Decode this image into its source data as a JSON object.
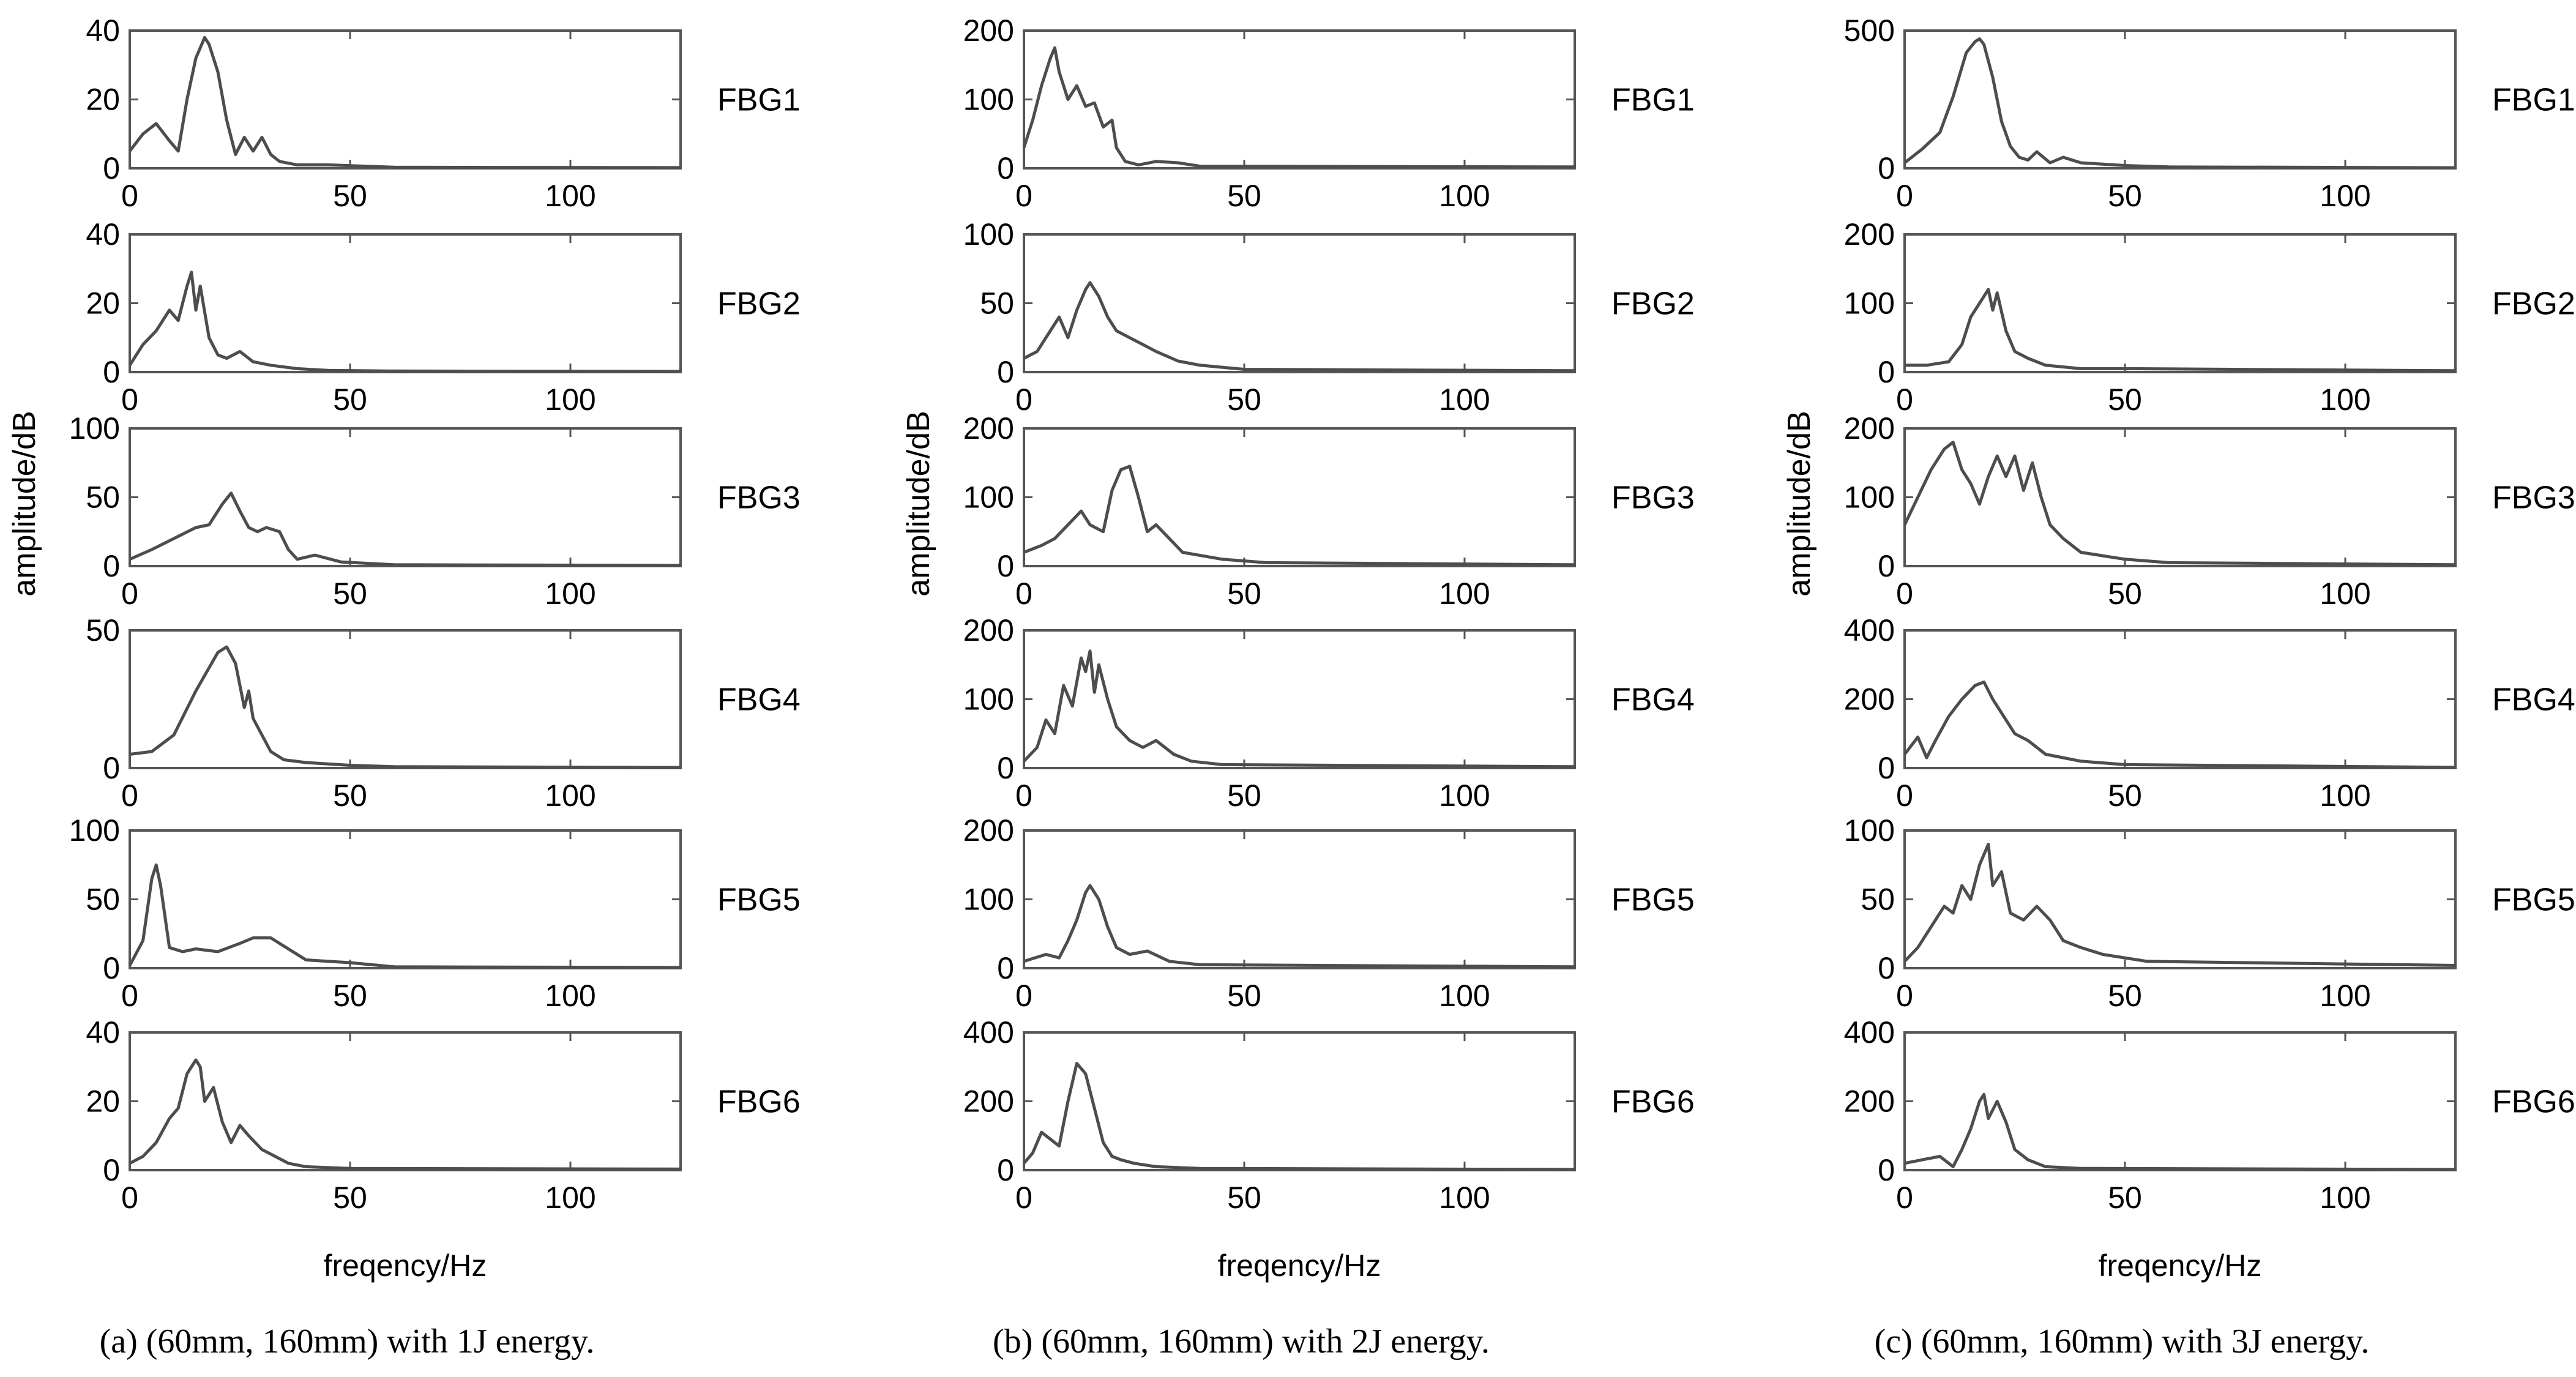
{
  "chart_data": [
    {
      "name": "panel-a",
      "type": "line",
      "caption": "(a) (60mm, 160mm) with 1J energy.",
      "ylabel": "amplitude/dB",
      "xlabel": "freqency/Hz",
      "xlim": [
        0,
        125
      ],
      "xticks": [
        0,
        50,
        100
      ],
      "subplots": [
        {
          "label": "FBG1",
          "ylim": [
            0,
            40
          ],
          "yticks": [
            0,
            20,
            40
          ],
          "x": [
            0,
            3,
            6,
            9,
            11,
            13,
            15,
            17,
            18,
            20,
            22,
            24,
            26,
            28,
            30,
            32,
            34,
            38,
            45,
            60,
            125
          ],
          "y": [
            5,
            10,
            13,
            8,
            5,
            20,
            32,
            38,
            36,
            28,
            14,
            4,
            9,
            5,
            9,
            4,
            2,
            1,
            1,
            0.3,
            0.2
          ]
        },
        {
          "label": "FBG2",
          "ylim": [
            0,
            40
          ],
          "yticks": [
            0,
            20,
            40
          ],
          "x": [
            0,
            3,
            6,
            9,
            11,
            13,
            14,
            15,
            16,
            18,
            20,
            22,
            25,
            28,
            32,
            38,
            45,
            60,
            125
          ],
          "y": [
            2,
            8,
            12,
            18,
            15,
            25,
            29,
            18,
            25,
            10,
            5,
            4,
            6,
            3,
            2,
            1,
            0.5,
            0.3,
            0.2
          ]
        },
        {
          "label": "FBG3",
          "ylim": [
            0,
            100
          ],
          "yticks": [
            0,
            50,
            100
          ],
          "x": [
            0,
            5,
            10,
            15,
            18,
            21,
            23,
            25,
            27,
            29,
            31,
            34,
            36,
            38,
            42,
            48,
            60,
            125
          ],
          "y": [
            5,
            12,
            20,
            28,
            30,
            45,
            53,
            40,
            28,
            25,
            28,
            25,
            12,
            5,
            8,
            3,
            1,
            0.5
          ]
        },
        {
          "label": "FBG4",
          "ylim": [
            0,
            50
          ],
          "yticks": [
            0,
            50
          ],
          "x": [
            0,
            5,
            10,
            15,
            20,
            22,
            24,
            26,
            27,
            28,
            30,
            32,
            35,
            40,
            50,
            60,
            125
          ],
          "y": [
            5,
            6,
            12,
            28,
            42,
            44,
            38,
            22,
            28,
            18,
            12,
            6,
            3,
            2,
            1,
            0.5,
            0.2
          ]
        },
        {
          "label": "FBG5",
          "ylim": [
            0,
            100
          ],
          "yticks": [
            0,
            50,
            100
          ],
          "x": [
            0,
            3,
            5,
            6,
            7,
            9,
            12,
            15,
            20,
            25,
            28,
            32,
            36,
            40,
            50,
            60,
            125
          ],
          "y": [
            2,
            20,
            65,
            75,
            60,
            15,
            12,
            14,
            12,
            18,
            22,
            22,
            14,
            6,
            4,
            1,
            0.5
          ]
        },
        {
          "label": "FBG6",
          "ylim": [
            0,
            40
          ],
          "yticks": [
            0,
            20,
            40
          ],
          "x": [
            0,
            3,
            6,
            9,
            11,
            13,
            15,
            16,
            17,
            19,
            21,
            23,
            25,
            27,
            30,
            33,
            36,
            40,
            50,
            125
          ],
          "y": [
            2,
            4,
            8,
            15,
            18,
            28,
            32,
            30,
            20,
            24,
            14,
            8,
            13,
            10,
            6,
            4,
            2,
            1,
            0.5,
            0.3
          ]
        }
      ]
    },
    {
      "name": "panel-b",
      "type": "line",
      "caption": "(b) (60mm, 160mm) with 2J energy.",
      "ylabel": "amplitude/dB",
      "xlabel": "freqency/Hz",
      "xlim": [
        0,
        125
      ],
      "xticks": [
        0,
        50,
        100
      ],
      "subplots": [
        {
          "label": "FBG1",
          "ylim": [
            0,
            200
          ],
          "yticks": [
            0,
            100,
            200
          ],
          "x": [
            0,
            2,
            4,
            6,
            7,
            8,
            10,
            12,
            14,
            16,
            18,
            20,
            21,
            23,
            26,
            30,
            35,
            40,
            125
          ],
          "y": [
            30,
            70,
            120,
            160,
            175,
            140,
            100,
            120,
            90,
            95,
            60,
            70,
            30,
            10,
            5,
            10,
            8,
            3,
            2
          ]
        },
        {
          "label": "FBG2",
          "ylim": [
            0,
            100
          ],
          "yticks": [
            0,
            50,
            100
          ],
          "x": [
            0,
            3,
            6,
            8,
            10,
            12,
            14,
            15,
            17,
            19,
            21,
            24,
            27,
            30,
            35,
            40,
            50,
            125
          ],
          "y": [
            10,
            15,
            30,
            40,
            25,
            45,
            60,
            65,
            55,
            40,
            30,
            25,
            20,
            15,
            8,
            5,
            2,
            1
          ]
        },
        {
          "label": "FBG3",
          "ylim": [
            0,
            200
          ],
          "yticks": [
            0,
            100,
            200
          ],
          "x": [
            0,
            4,
            7,
            10,
            13,
            15,
            18,
            20,
            22,
            24,
            26,
            28,
            30,
            33,
            36,
            45,
            55,
            125
          ],
          "y": [
            20,
            30,
            40,
            60,
            80,
            60,
            50,
            110,
            140,
            145,
            100,
            50,
            60,
            40,
            20,
            10,
            5,
            2
          ]
        },
        {
          "label": "FBG4",
          "ylim": [
            0,
            200
          ],
          "yticks": [
            0,
            100,
            200
          ],
          "x": [
            0,
            3,
            5,
            7,
            9,
            11,
            13,
            14,
            15,
            16,
            17,
            19,
            21,
            24,
            27,
            30,
            34,
            38,
            45,
            125
          ],
          "y": [
            10,
            30,
            70,
            50,
            120,
            90,
            160,
            140,
            170,
            110,
            150,
            100,
            60,
            40,
            30,
            40,
            20,
            10,
            5,
            2
          ]
        },
        {
          "label": "FBG5",
          "ylim": [
            0,
            200
          ],
          "yticks": [
            0,
            100,
            200
          ],
          "x": [
            0,
            5,
            8,
            10,
            12,
            14,
            15,
            17,
            19,
            21,
            24,
            28,
            33,
            40,
            125
          ],
          "y": [
            10,
            20,
            15,
            40,
            70,
            110,
            120,
            100,
            60,
            30,
            20,
            25,
            10,
            5,
            2
          ]
        },
        {
          "label": "FBG6",
          "ylim": [
            0,
            400
          ],
          "yticks": [
            0,
            200,
            400
          ],
          "x": [
            0,
            2,
            4,
            6,
            8,
            10,
            12,
            14,
            16,
            18,
            20,
            22,
            25,
            30,
            40,
            125
          ],
          "y": [
            20,
            50,
            110,
            90,
            70,
            200,
            310,
            280,
            180,
            80,
            40,
            30,
            20,
            10,
            5,
            2
          ]
        }
      ]
    },
    {
      "name": "panel-c",
      "type": "line",
      "caption": "(c) (60mm, 160mm) with 3J energy.",
      "ylabel": "amplitude/dB",
      "xlabel": "freqency/Hz",
      "xlim": [
        0,
        125
      ],
      "xticks": [
        0,
        50,
        100
      ],
      "subplots": [
        {
          "label": "FBG1",
          "ylim": [
            0,
            500
          ],
          "yticks": [
            0,
            500
          ],
          "x": [
            0,
            4,
            8,
            11,
            14,
            16,
            17,
            18,
            20,
            22,
            24,
            26,
            28,
            30,
            33,
            36,
            40,
            50,
            60,
            125
          ],
          "y": [
            20,
            70,
            130,
            260,
            420,
            460,
            470,
            450,
            330,
            170,
            80,
            40,
            30,
            60,
            20,
            40,
            20,
            10,
            5,
            2
          ]
        },
        {
          "label": "FBG2",
          "ylim": [
            0,
            200
          ],
          "yticks": [
            0,
            100,
            200
          ],
          "x": [
            0,
            5,
            10,
            13,
            15,
            17,
            19,
            20,
            21,
            23,
            25,
            28,
            32,
            40,
            50,
            125
          ],
          "y": [
            10,
            10,
            15,
            40,
            80,
            100,
            120,
            90,
            115,
            60,
            30,
            20,
            10,
            5,
            5,
            2
          ]
        },
        {
          "label": "FBG3",
          "ylim": [
            0,
            200
          ],
          "yticks": [
            0,
            100,
            200
          ],
          "x": [
            0,
            3,
            6,
            9,
            11,
            13,
            15,
            17,
            19,
            21,
            23,
            25,
            27,
            29,
            31,
            33,
            36,
            40,
            50,
            60,
            125
          ],
          "y": [
            60,
            100,
            140,
            170,
            180,
            140,
            120,
            90,
            130,
            160,
            130,
            160,
            110,
            150,
            100,
            60,
            40,
            20,
            10,
            5,
            2
          ]
        },
        {
          "label": "FBG4",
          "ylim": [
            0,
            400
          ],
          "yticks": [
            0,
            200,
            400
          ],
          "x": [
            0,
            3,
            5,
            7,
            10,
            13,
            16,
            18,
            20,
            22,
            25,
            28,
            32,
            40,
            50,
            125
          ],
          "y": [
            40,
            90,
            30,
            80,
            150,
            200,
            240,
            250,
            200,
            160,
            100,
            80,
            40,
            20,
            10,
            2
          ]
        },
        {
          "label": "FBG5",
          "ylim": [
            0,
            100
          ],
          "yticks": [
            0,
            50,
            100
          ],
          "x": [
            0,
            3,
            6,
            9,
            11,
            13,
            15,
            17,
            19,
            20,
            22,
            24,
            27,
            30,
            33,
            36,
            40,
            45,
            55,
            125
          ],
          "y": [
            5,
            15,
            30,
            45,
            40,
            60,
            50,
            75,
            90,
            60,
            70,
            40,
            35,
            45,
            35,
            20,
            15,
            10,
            5,
            2
          ]
        },
        {
          "label": "FBG6",
          "ylim": [
            0,
            400
          ],
          "yticks": [
            0,
            200,
            400
          ],
          "x": [
            0,
            4,
            8,
            11,
            13,
            15,
            17,
            18,
            19,
            21,
            23,
            25,
            28,
            32,
            40,
            125
          ],
          "y": [
            20,
            30,
            40,
            10,
            60,
            120,
            200,
            220,
            150,
            200,
            140,
            60,
            30,
            10,
            5,
            2
          ]
        }
      ]
    }
  ]
}
